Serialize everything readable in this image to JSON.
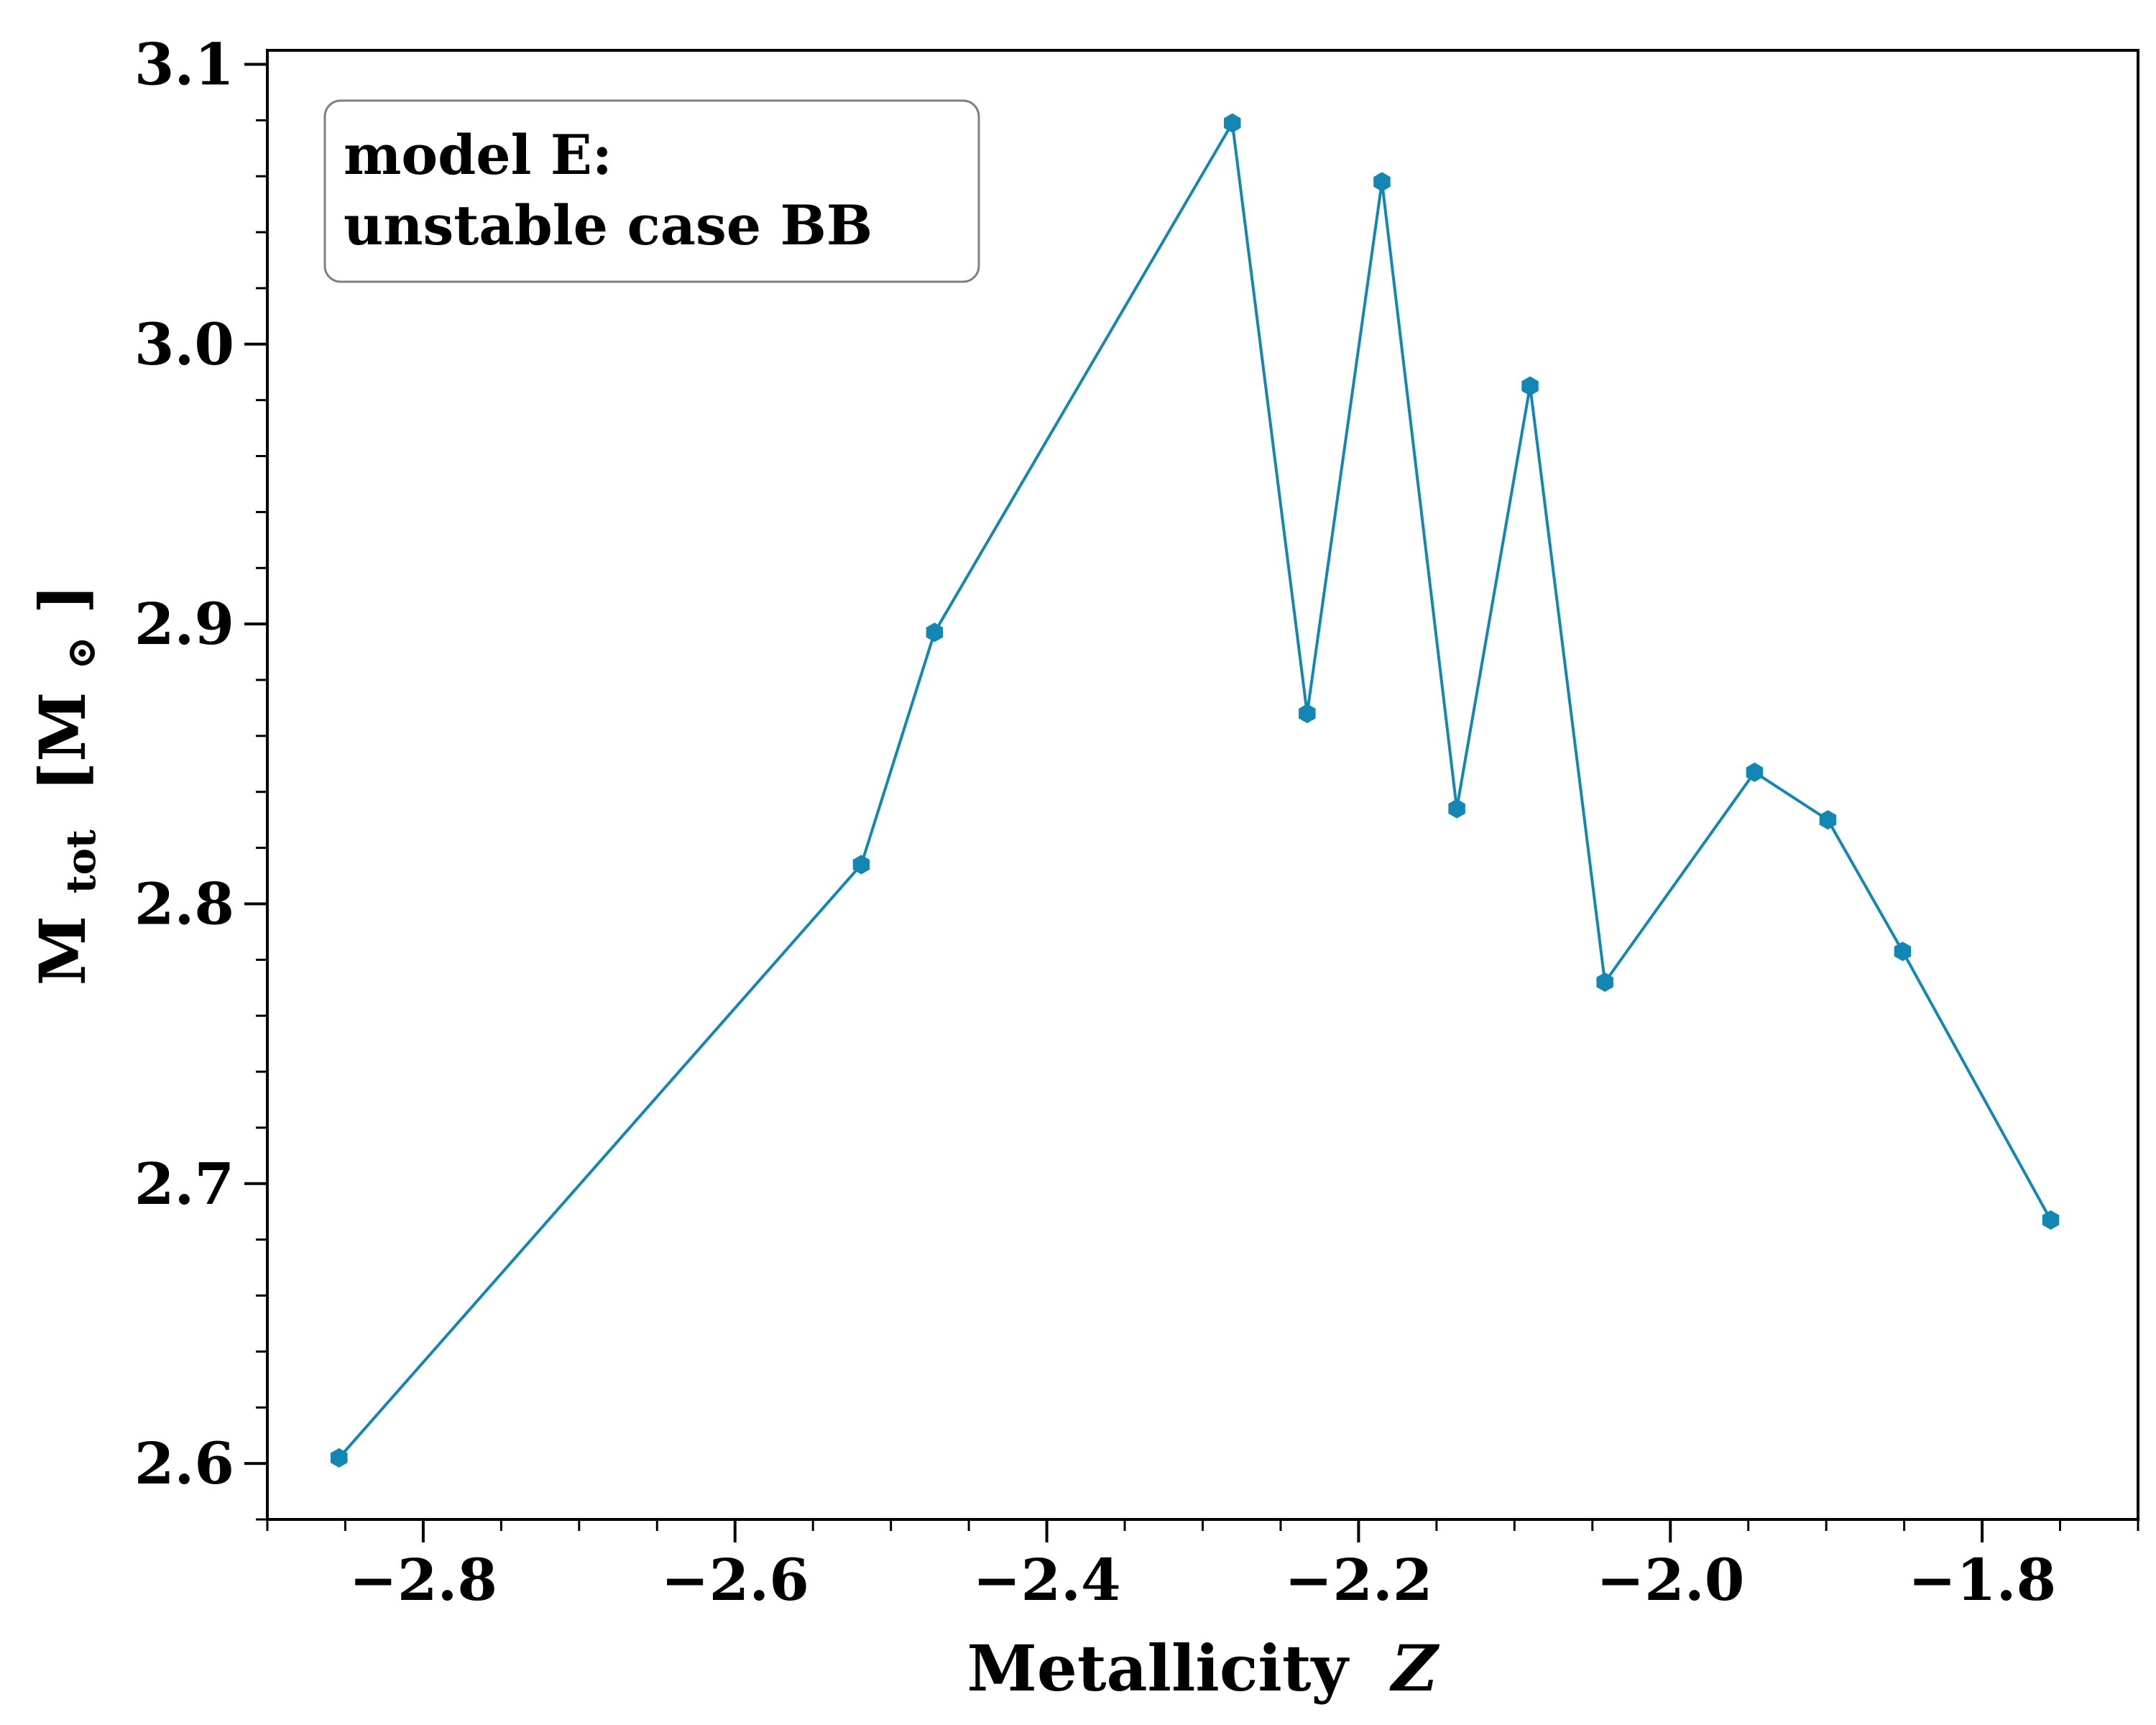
{
  "chart_data": {
    "type": "line",
    "title": "",
    "xlabel": "Metallicity",
    "xlabel_symbol": "Z",
    "ylabel_main": "M",
    "ylabel_sub": "tot",
    "ylabel_unit_open": "[M",
    "ylabel_unit_symbol": "⊙",
    "ylabel_unit_close": "]",
    "xlim": [
      -2.9,
      -1.7
    ],
    "ylim": [
      2.58,
      3.105
    ],
    "xticks": [
      -2.8,
      -2.6,
      -2.4,
      -2.2,
      -2.0,
      -1.8
    ],
    "xtick_labels": [
      "−2.8",
      "−2.6",
      "−2.4",
      "−2.2",
      "−2.0",
      "−1.8"
    ],
    "yticks": [
      2.6,
      2.7,
      2.8,
      2.9,
      3.0,
      3.1
    ],
    "ytick_labels": [
      "2.6",
      "2.7",
      "2.8",
      "2.9",
      "3.0",
      "3.1"
    ],
    "grid": false,
    "line_color": "#1387b4",
    "marker": "hexagon",
    "annotation": {
      "lines": [
        "model E:",
        "unstable case BB"
      ],
      "placement": "top-left"
    },
    "series": [
      {
        "x": [
          -2.854,
          -2.519,
          -2.472,
          -2.281,
          -2.233,
          -2.185,
          -2.137,
          -2.09,
          -2.042,
          -1.946,
          -1.899,
          -1.851,
          -1.756
        ],
        "y": [
          2.602,
          2.814,
          2.897,
          3.079,
          2.868,
          3.058,
          2.834,
          2.985,
          2.772,
          2.847,
          2.83,
          2.783,
          2.687
        ]
      }
    ]
  }
}
